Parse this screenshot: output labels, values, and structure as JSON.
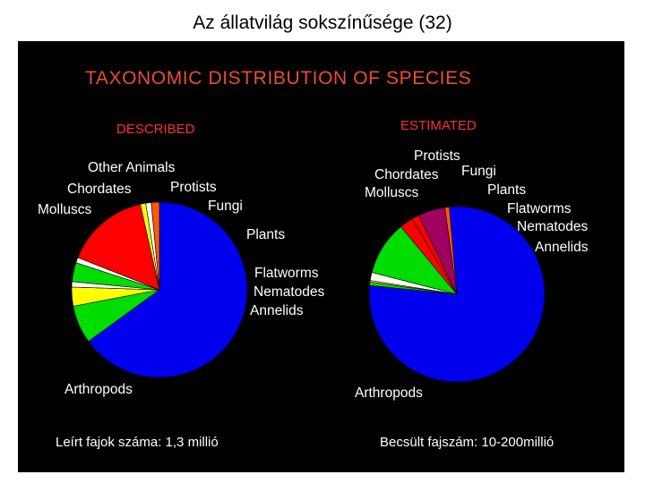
{
  "page": {
    "title": "Az állatvilág sokszínűsége (32)"
  },
  "slide": {
    "title": "TAXONOMIC DISTRIBUTION OF SPECIES",
    "title_color": "#e8502c",
    "subtitle_color": "#ff3030"
  },
  "chart_data": [
    {
      "type": "pie",
      "title": "DESCRIBED",
      "caption": "Leírt fajok száma: 1,3 millió",
      "slices": [
        {
          "label": "Arthropods",
          "value": 65.0,
          "color": "#0000ee"
        },
        {
          "label": "Molluscs",
          "value": 7.0,
          "color": "#00dd00"
        },
        {
          "label": "Chordates",
          "value": 3.5,
          "color": "#ffff00"
        },
        {
          "label": "Other Animals",
          "value": 1.0,
          "color": "#ffffff"
        },
        {
          "label": "Protists",
          "value": 3.5,
          "color": "#00dd00"
        },
        {
          "label": "Fungi",
          "value": 1.0,
          "color": "#ffffff"
        },
        {
          "label": "Plants",
          "value": 15.5,
          "color": "#ff0000"
        },
        {
          "label": "Flatworms",
          "value": 1.0,
          "color": "#ffff00"
        },
        {
          "label": "Nematodes",
          "value": 1.0,
          "color": "#ffffff"
        },
        {
          "label": "Annelids",
          "value": 1.5,
          "color": "#ff5a00"
        }
      ]
    },
    {
      "type": "pie",
      "title": "ESTIMATED",
      "caption": "Becsült fajszám: 10-200millió",
      "slices": [
        {
          "label": "Arthropods",
          "value": 78.0,
          "color": "#0000ee"
        },
        {
          "label": "Molluscs",
          "value": 0.6,
          "color": "#00dd00"
        },
        {
          "label": "Chordates",
          "value": 0.3,
          "color": "#ffff00"
        },
        {
          "label": "Protists",
          "value": 1.5,
          "color": "#ffffff"
        },
        {
          "label": "Fungi",
          "value": 10.0,
          "color": "#00dd00"
        },
        {
          "label": "Plants",
          "value": 2.5,
          "color": "#ff0000"
        },
        {
          "label": "Flatworms",
          "value": 1.3,
          "color": "#ff0000"
        },
        {
          "label": "Nematodes",
          "value": 5.0,
          "color": "#a00060"
        },
        {
          "label": "Annelids",
          "value": 0.8,
          "color": "#ff5a00"
        }
      ]
    }
  ]
}
